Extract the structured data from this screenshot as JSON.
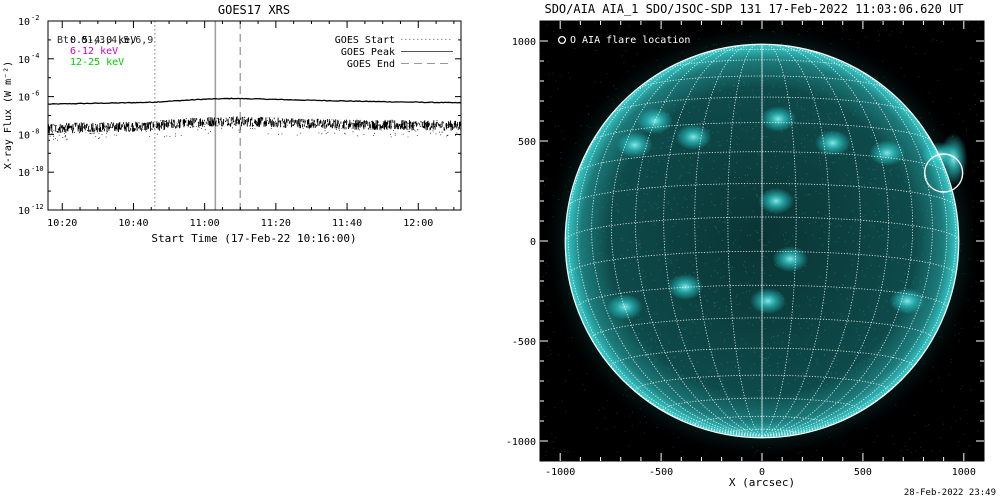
{
  "chart_data": [
    {
      "type": "line",
      "title": "GOES17 XRS",
      "xlabel": "Start Time (17-Feb-22 10:16:00)",
      "ylabel": "X-ray Flux (W m⁻²)",
      "y_scale": "log",
      "ylim": [
        1e-12,
        0.01
      ],
      "xlim": [
        "10:16",
        "12:12"
      ],
      "x_ticks": [
        "10:20",
        "10:40",
        "11:00",
        "11:20",
        "11:40",
        "12:00"
      ],
      "y_ticks": [
        {
          "base": "10",
          "exp": "-2"
        },
        {
          "base": "10",
          "exp": "-4"
        },
        {
          "base": "10",
          "exp": "-6"
        },
        {
          "base": "10",
          "exp": "-8"
        },
        {
          "base": "10",
          "exp": "-10"
        },
        {
          "base": "10",
          "exp": "-12"
        }
      ],
      "channel_labels": [
        {
          "text": "0.5-4.0 keV",
          "color": "#000000"
        },
        {
          "text": "6-12 keV",
          "color": "#cc00cc"
        },
        {
          "text": "12-25 keV",
          "color": "#00cc00"
        }
      ],
      "overlay_label": "Bt: 01,3,4,5,6,9",
      "legend_position": "top-right",
      "legend": [
        {
          "label": "GOES Start",
          "style": "dotted"
        },
        {
          "label": "GOES Peak",
          "style": "solid"
        },
        {
          "label": "GOES End",
          "style": "dashed"
        }
      ],
      "event_times": {
        "start": "10:46",
        "peak": "11:03",
        "end": "11:10"
      },
      "series": [
        {
          "channel": "long",
          "x": [
            "10:16",
            "10:25",
            "10:35",
            "10:45",
            "10:52",
            "11:00",
            "11:08",
            "11:15",
            "11:25",
            "11:35",
            "11:45",
            "11:55",
            "12:05",
            "12:12"
          ],
          "values": [
            4e-07,
            4.3e-07,
            4.6e-07,
            5e-07,
            6e-07,
            7.3e-07,
            8e-07,
            7.5e-07,
            6.7e-07,
            6.1e-07,
            5.6e-07,
            5.2e-07,
            4.9e-07,
            4.7e-07
          ]
        },
        {
          "channel": "short",
          "x": [
            "10:16",
            "10:25",
            "10:35",
            "10:45",
            "10:52",
            "11:00",
            "11:08",
            "11:15",
            "11:25",
            "11:35",
            "11:45",
            "11:55",
            "12:05",
            "12:12"
          ],
          "values": [
            2e-08,
            2.3e-08,
            2.5e-08,
            2.7e-08,
            3.6e-08,
            4.7e-08,
            5e-08,
            4.6e-08,
            4e-08,
            3.6e-08,
            3.3e-08,
            3.1e-08,
            3e-08,
            2.9e-08
          ]
        }
      ],
      "colors": {
        "axes": "#000000",
        "event_lines": "#a0a0a0"
      }
    },
    {
      "type": "image",
      "title": "SDO/AIA AIA_1 SDO/JSOC-SDP 131 17-Feb-2022 11:03:06.620 UT",
      "xlabel": "X (arcsec)",
      "ylabel": "",
      "xlim": [
        -1100,
        1100
      ],
      "ylim": [
        -1100,
        1100
      ],
      "x_ticks": [
        "-1000",
        "-500",
        "0",
        "500",
        "1000"
      ],
      "y_ticks": [
        "1000",
        "500",
        "0",
        "-500",
        "-1000"
      ],
      "legend": "O AIA flare location",
      "solar_radius_arcsec": 975,
      "grid_spacing_deg": 10,
      "flare_location": {
        "x": 900,
        "y": 340
      },
      "active_regions": [
        {
          "x": -630,
          "y": 480
        },
        {
          "x": -530,
          "y": 600
        },
        {
          "x": -340,
          "y": 520
        },
        {
          "x": 80,
          "y": 610
        },
        {
          "x": 350,
          "y": 490
        },
        {
          "x": 620,
          "y": 440
        },
        {
          "x": 140,
          "y": -90
        },
        {
          "x": 70,
          "y": 200
        },
        {
          "x": -680,
          "y": -330
        },
        {
          "x": -380,
          "y": -230
        },
        {
          "x": 720,
          "y": -300
        },
        {
          "x": 30,
          "y": -300
        },
        {
          "x": 880,
          "y": 430
        }
      ],
      "colors": {
        "disk": "#0c3a3a",
        "background": "#000000",
        "emission": "#2fd6d6",
        "grid": "#ffffff"
      }
    }
  ],
  "timestamp": "28-Feb-2022 23:49"
}
